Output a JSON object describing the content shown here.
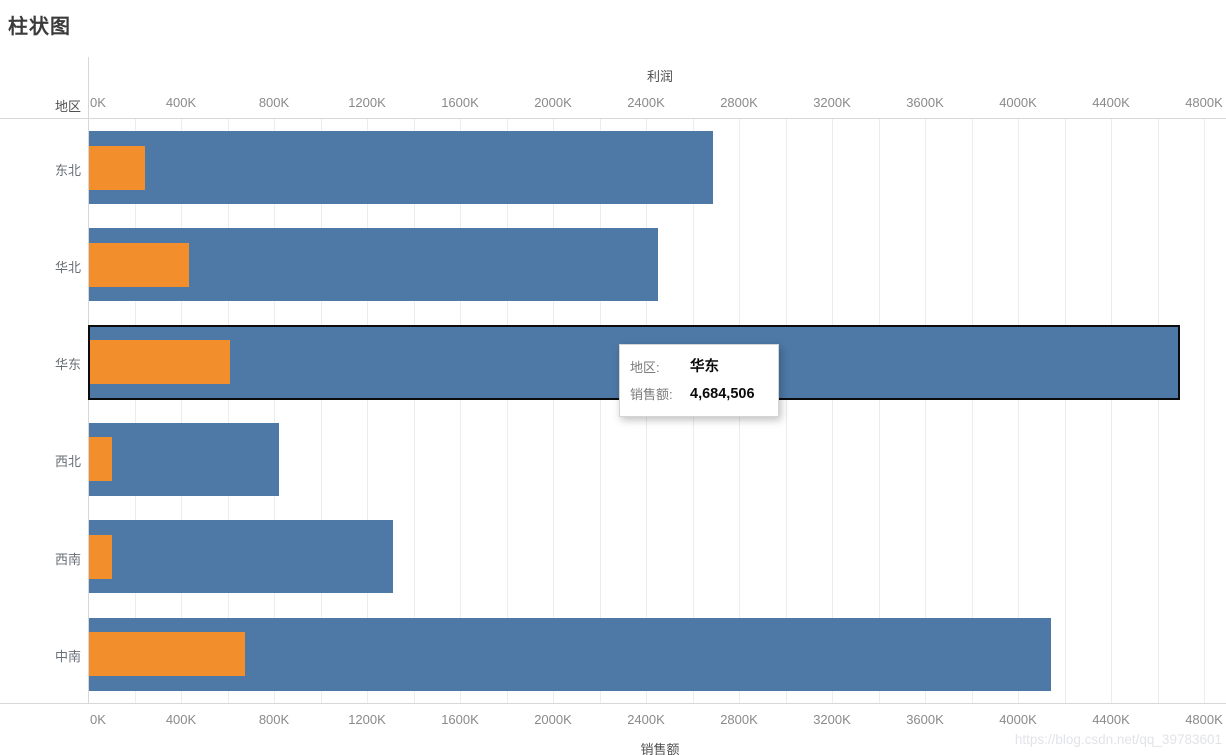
{
  "title": "柱状图",
  "row_header": "地区",
  "watermark": "https://blog.csdn.net/qq_39783601",
  "tooltip": {
    "rows": [
      {
        "key": "地区:",
        "value": "华东"
      },
      {
        "key": "销售额:",
        "value": "4,684,506"
      }
    ]
  },
  "chart_data": {
    "type": "bar",
    "orientation": "horizontal",
    "title": "柱状图",
    "categories": [
      "东北",
      "华北",
      "华东",
      "西北",
      "西南",
      "中南"
    ],
    "series": [
      {
        "name": "销售额",
        "color": "#4e79a7",
        "values": [
          2684000,
          2447000,
          4684506,
          817000,
          1308000,
          4138000
        ]
      },
      {
        "name": "利润",
        "color": "#f28e2b",
        "values": [
          241000,
          430000,
          607000,
          99000,
          99000,
          671000
        ]
      }
    ],
    "top_axis_label": "利润",
    "bottom_axis_label": "销售额",
    "axis_ticks": [
      "0K",
      "400K",
      "800K",
      "1200K",
      "1600K",
      "2000K",
      "2400K",
      "2800K",
      "3200K",
      "3600K",
      "4000K",
      "4400K",
      "4800K"
    ],
    "xlim": [
      0,
      4800000
    ],
    "tick_step": 400000,
    "gridline_step": 200000,
    "grid": true,
    "legend_position": "none",
    "selected_category": "华东",
    "selected_tooltip": {
      "地区": "华东",
      "销售额": "4,684,506"
    }
  },
  "colors": {
    "sales_bar": "#4e79a7",
    "profit_bar": "#f28e2b",
    "gridline": "#ececec",
    "axis_line": "#d7d7d7",
    "tick_label": "#8a8a8a",
    "selection_outline": "#0c0c0c",
    "tooltip_background": "#ffffff"
  }
}
